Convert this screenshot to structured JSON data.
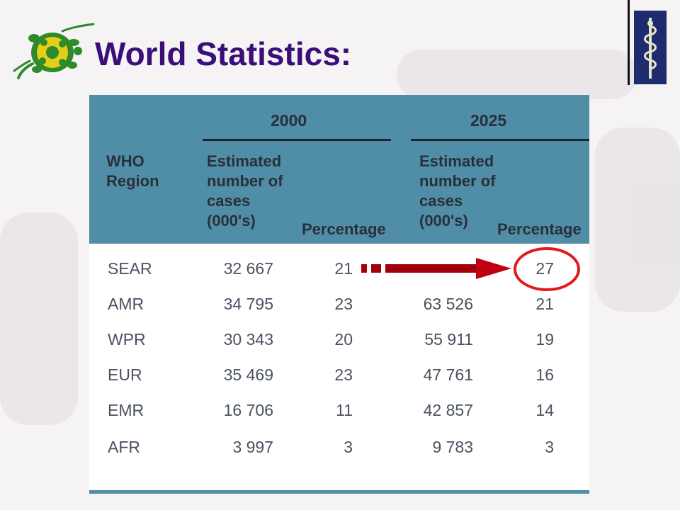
{
  "slide": {
    "title": "World Statistics:"
  },
  "table": {
    "headers": {
      "region": "WHO\nRegion",
      "year_2000": "2000",
      "year_2025": "2025",
      "cases_2000": "Estimated\nnumber of\ncases\n(000's)",
      "pct_2000": "Percentage",
      "cases_2025": "Estimated\nnumber of\ncases\n(000's)",
      "pct_2025": "Percentage"
    },
    "rows": [
      {
        "region": "SEAR",
        "cases_2000": "32 667",
        "pct_2000": "21",
        "cases_2025": "",
        "pct_2025": "27"
      },
      {
        "region": "AMR",
        "cases_2000": "34 795",
        "pct_2000": "23",
        "cases_2025": "63 526",
        "pct_2025": "21"
      },
      {
        "region": "WPR",
        "cases_2000": "30 343",
        "pct_2000": "20",
        "cases_2025": "55 911",
        "pct_2025": "19"
      },
      {
        "region": "EUR",
        "cases_2000": "35 469",
        "pct_2000": "23",
        "cases_2025": "47 761",
        "pct_2025": "16"
      },
      {
        "region": "EMR",
        "cases_2000": "16 706",
        "pct_2000": "11",
        "cases_2025": "42 857",
        "pct_2025": "14"
      },
      {
        "region": "AFR",
        "cases_2000": "3 997",
        "pct_2000": "3",
        "cases_2025": "9 783",
        "pct_2025": "3"
      }
    ]
  },
  "annotation": {
    "arrow_color": "#a3000c",
    "circle_color": "#e01a1a"
  },
  "theme": {
    "title_color": "#3a0f7a",
    "table_header_bg": "#4f8ea6",
    "logo_green": "#2f8a2a"
  }
}
